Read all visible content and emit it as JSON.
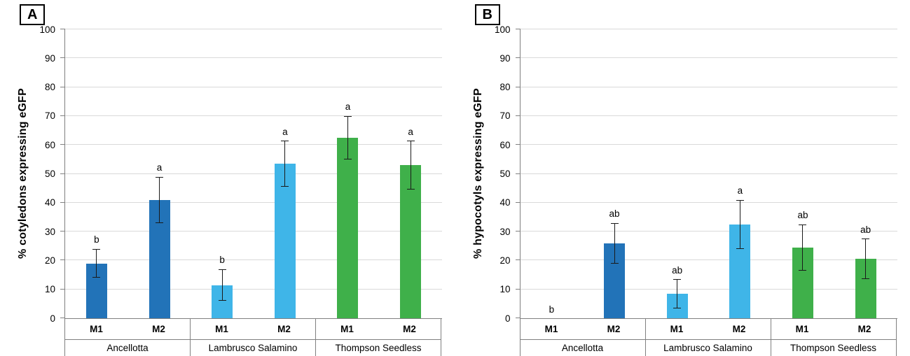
{
  "figure": {
    "background": "#ffffff",
    "grid_color": "#d9d9d9",
    "axis_color": "#808080"
  },
  "chart_data": [
    {
      "type": "bar",
      "panel_label": "A",
      "title": "",
      "xlabel": "",
      "ylabel": "% cotyledons expressing eGFP",
      "ylim": [
        0,
        100
      ],
      "ytick_step": 10,
      "grid": true,
      "legend": "none",
      "series_labels": [
        "M1",
        "M2"
      ],
      "groups": [
        {
          "name": "Ancellotta",
          "color": "#2273b8",
          "bars": [
            {
              "label": "M1",
              "value": 19,
              "error": 5,
              "letter": "b"
            },
            {
              "label": "M2",
              "value": 41,
              "error": 8,
              "letter": "a"
            }
          ]
        },
        {
          "name": "Lambrusco Salamino",
          "color": "#3fb5e8",
          "bars": [
            {
              "label": "M1",
              "value": 11.5,
              "error": 5.5,
              "letter": "b"
            },
            {
              "label": "M2",
              "value": 53.5,
              "error": 8,
              "letter": "a"
            }
          ]
        },
        {
          "name": "Thompson Seedless",
          "color": "#3fb04a",
          "bars": [
            {
              "label": "M1",
              "value": 62.5,
              "error": 7.5,
              "letter": "a"
            },
            {
              "label": "M2",
              "value": 53,
              "error": 8.5,
              "letter": "a"
            }
          ]
        }
      ]
    },
    {
      "type": "bar",
      "panel_label": "B",
      "title": "",
      "xlabel": "",
      "ylabel": "% hypocotyls expressing eGFP",
      "ylim": [
        0,
        100
      ],
      "ytick_step": 10,
      "grid": true,
      "legend": "none",
      "series_labels": [
        "M1",
        "M2"
      ],
      "groups": [
        {
          "name": "Ancellotta",
          "color": "#2273b8",
          "bars": [
            {
              "label": "M1",
              "value": 0,
              "error": 0,
              "letter": "b"
            },
            {
              "label": "M2",
              "value": 26,
              "error": 7,
              "letter": "ab"
            }
          ]
        },
        {
          "name": "Lambrusco Salamino",
          "color": "#3fb5e8",
          "bars": [
            {
              "label": "M1",
              "value": 8.5,
              "error": 5,
              "letter": "ab"
            },
            {
              "label": "M2",
              "value": 32.5,
              "error": 8.5,
              "letter": "a"
            }
          ]
        },
        {
          "name": "Thompson Seedless",
          "color": "#3fb04a",
          "bars": [
            {
              "label": "M1",
              "value": 24.5,
              "error": 8,
              "letter": "ab"
            },
            {
              "label": "M2",
              "value": 20.5,
              "error": 7,
              "letter": "ab"
            }
          ]
        }
      ]
    }
  ]
}
